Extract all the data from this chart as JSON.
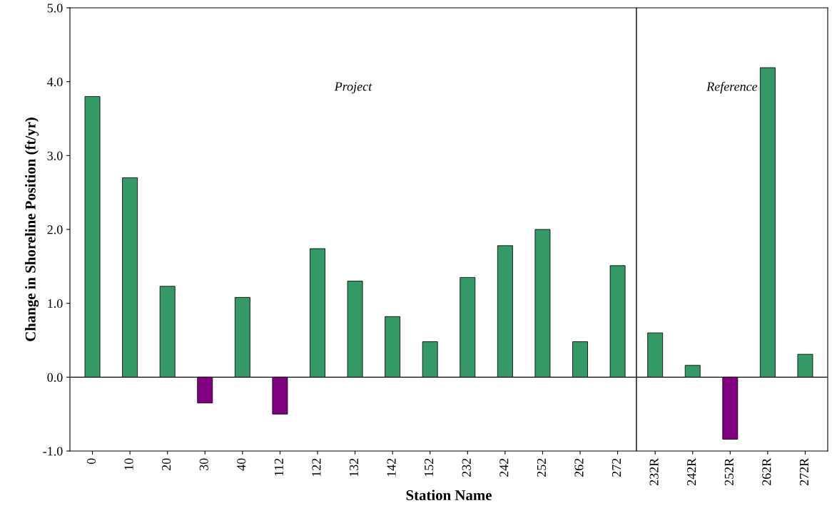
{
  "chart_data": {
    "type": "bar",
    "xlabel": "Station Name",
    "ylabel": "Change in Shoreline Position (ft/yr)",
    "categories": [
      "0",
      "10",
      "20",
      "30",
      "40",
      "112",
      "122",
      "132",
      "142",
      "152",
      "232",
      "242",
      "252",
      "262",
      "272",
      "232R",
      "242R",
      "252R",
      "262R",
      "272R"
    ],
    "values": [
      3.8,
      2.7,
      1.23,
      -0.35,
      1.08,
      -0.5,
      1.74,
      1.3,
      0.82,
      0.48,
      1.35,
      1.78,
      2.0,
      0.48,
      1.51,
      0.6,
      0.16,
      -0.84,
      4.19,
      0.31
    ],
    "colors": [
      "#339966",
      "#339966",
      "#339966",
      "#800080",
      "#339966",
      "#800080",
      "#339966",
      "#339966",
      "#339966",
      "#339966",
      "#339966",
      "#339966",
      "#339966",
      "#339966",
      "#339966",
      "#339966",
      "#339966",
      "#800080",
      "#339966",
      "#339966"
    ],
    "ylim": [
      -1.0,
      5.0
    ],
    "yticks": [
      {
        "value": -1,
        "label": "-1.0"
      },
      {
        "value": 0,
        "label": "0.0"
      },
      {
        "value": 1,
        "label": "1.0"
      },
      {
        "value": 2,
        "label": "2.0"
      },
      {
        "value": 3,
        "label": "3.0"
      },
      {
        "value": 4,
        "label": "4.0"
      },
      {
        "value": 5,
        "label": "5.0"
      }
    ],
    "ref_lines": [
      {
        "axis": "y",
        "value": 0,
        "color": "#000000",
        "line_style": "solid"
      }
    ],
    "annotations": [
      "Project",
      "Reference"
    ],
    "grid": false,
    "legend": false
  }
}
